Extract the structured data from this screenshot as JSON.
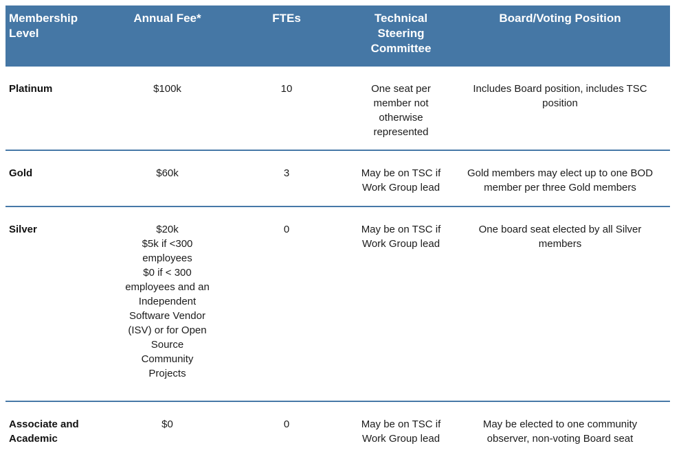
{
  "colors": {
    "header_background": "#4577A5",
    "header_text": "#FFFFFF",
    "row_divider": "#4678A7",
    "body_text": "#1B1B1B"
  },
  "table": {
    "headers": [
      {
        "label": "Membership\nLevel"
      },
      {
        "label": "Annual Fee*"
      },
      {
        "label": "FTEs"
      },
      {
        "label": "Technical\nSteering\nCommittee"
      },
      {
        "label": "Board/Voting Position"
      }
    ],
    "rows": [
      {
        "level": "Platinum",
        "annual_fee": "$100k",
        "ftes": "10",
        "technical_steering_committee": "One seat per\nmember not\notherwise\nrepresented",
        "board_voting_position": "Includes Board position, includes TSC\nposition"
      },
      {
        "level": "Gold",
        "annual_fee": "$60k",
        "ftes": "3",
        "technical_steering_committee": "May be on TSC if\nWork Group lead",
        "board_voting_position": "Gold members may elect up to one BOD\nmember per three Gold members"
      },
      {
        "level": "Silver",
        "annual_fee": "$20k\n$5k if <300\nemployees\n$0 if < 300\nemployees and an\nIndependent\nSoftware Vendor\n(ISV) or for Open\nSource\nCommunity\nProjects",
        "ftes": "0",
        "technical_steering_committee": "May be on TSC if\nWork Group lead",
        "board_voting_position": "One board seat elected by all Silver\nmembers"
      },
      {
        "level": "Associate and\nAcademic",
        "annual_fee": "$0",
        "ftes": "0",
        "technical_steering_committee": "May be on TSC if\nWork Group lead",
        "board_voting_position": "May be elected to one community\nobserver, non-voting Board seat"
      }
    ]
  }
}
